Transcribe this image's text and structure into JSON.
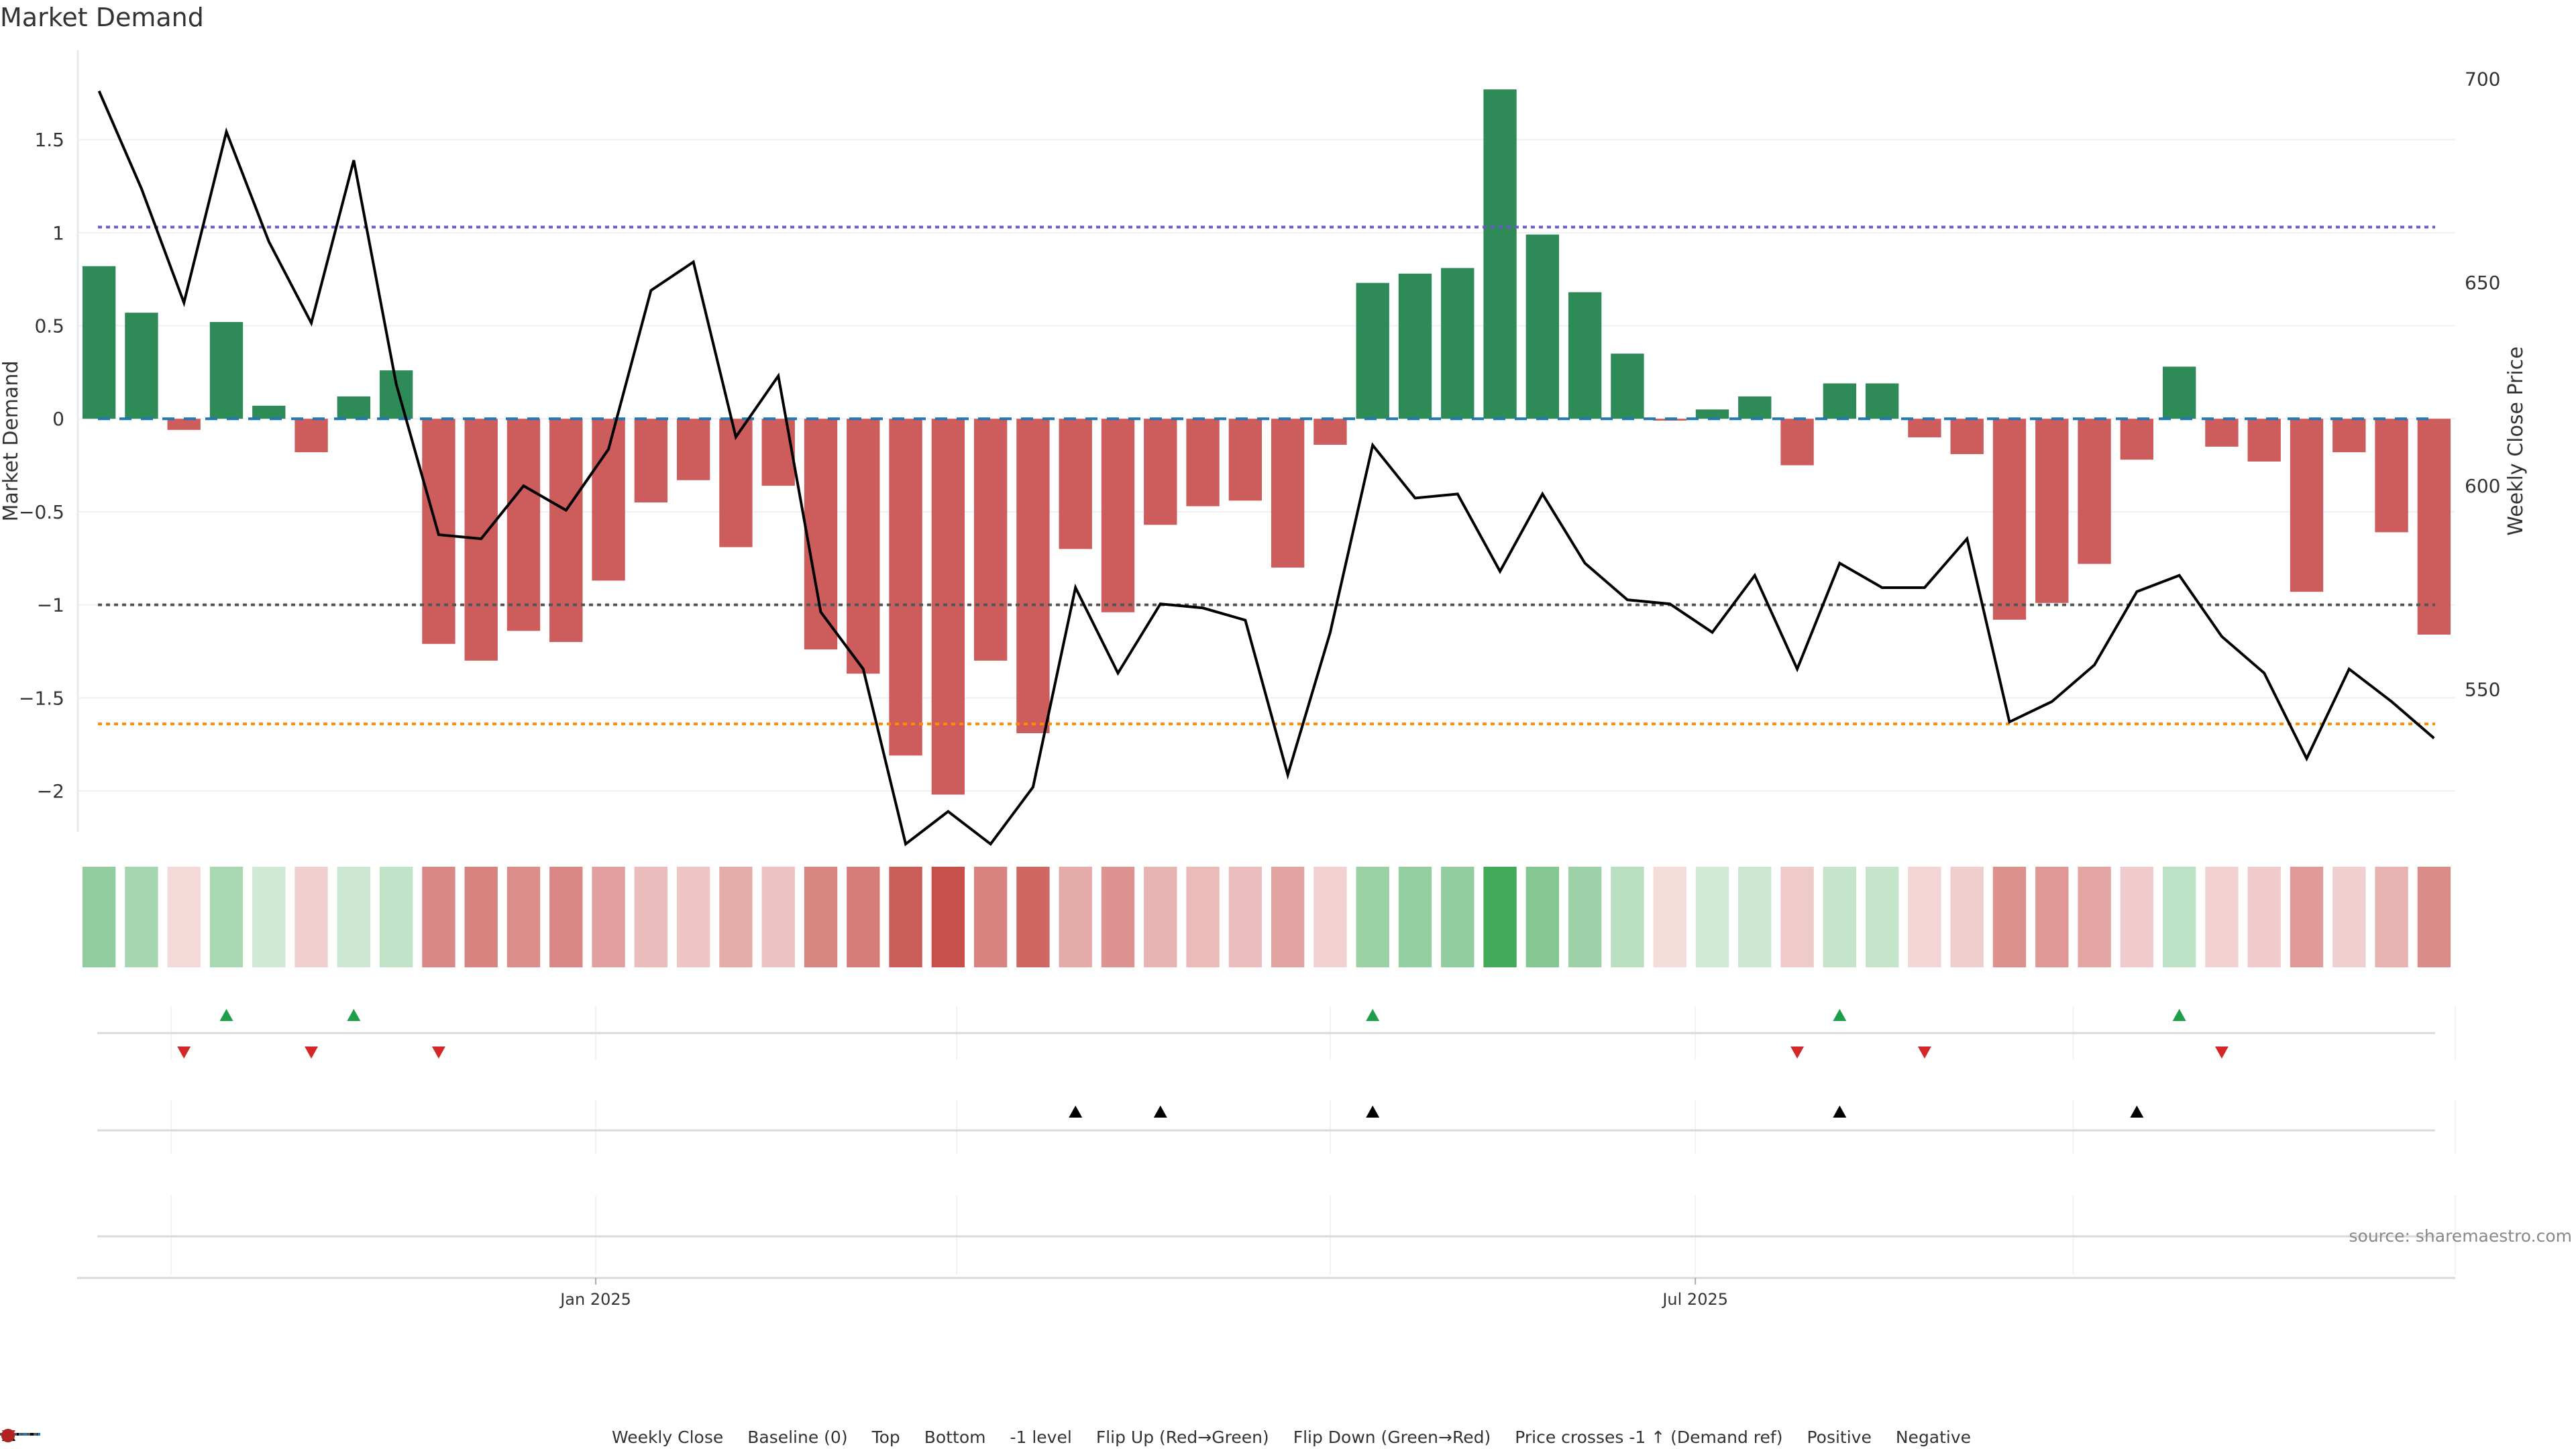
{
  "chart_data": {
    "type": "bar",
    "title": "Market Demand",
    "ylabel": "Market Demand",
    "y2label": "Weekly Close Price",
    "ylim": [
      -2.22,
      1.98
    ],
    "y2lim": [
      515,
      707
    ],
    "yticks": [
      -2,
      -1.5,
      -1,
      -0.5,
      0,
      0.5,
      1,
      1.5
    ],
    "ytick_labels": [
      "−2",
      "−1.5",
      "−1",
      "−0.5",
      "0",
      "0.5",
      "1",
      "1.5"
    ],
    "y2ticks": [
      550,
      600,
      650,
      700
    ],
    "y2tick_labels": [
      "550",
      "600",
      "650",
      "700"
    ],
    "xtick_labels": [
      {
        "label": "Jan 2025",
        "index": 11.7
      },
      {
        "label": "Jul 2025",
        "index": 37.6
      }
    ],
    "reference_lines": {
      "top": 1.03,
      "bottom": -1.64,
      "minus_one": -1,
      "baseline": 0
    },
    "demand": [
      0.82,
      0.57,
      -0.06,
      0.52,
      0.07,
      -0.18,
      0.12,
      0.26,
      -1.21,
      -1.3,
      -1.14,
      -1.2,
      -0.87,
      -0.45,
      -0.33,
      -0.69,
      -0.36,
      -1.24,
      -1.37,
      -1.81,
      -2.02,
      -1.3,
      -1.69,
      -0.7,
      -1.04,
      -0.57,
      -0.47,
      -0.44,
      -0.8,
      -0.14,
      0.73,
      0.78,
      0.81,
      1.77,
      0.99,
      0.68,
      0.35,
      -0.01,
      0.05,
      0.12,
      -0.25,
      0.19,
      0.19,
      -0.1,
      -0.19,
      -1.08,
      -0.99,
      -0.78,
      -0.22,
      0.28,
      -0.15,
      -0.23,
      -0.93,
      -0.18,
      -0.61,
      -1.16
    ],
    "weekly_close": [
      697,
      673,
      645,
      687,
      660,
      640,
      680,
      625,
      588,
      587,
      600,
      594,
      609,
      648,
      655,
      612,
      627,
      569,
      555,
      512,
      520,
      512,
      526,
      575,
      554,
      571,
      570,
      567,
      529,
      564,
      610,
      597,
      598,
      579,
      598,
      581,
      572,
      571,
      564,
      578,
      555,
      581,
      575,
      575,
      587,
      542,
      547,
      556,
      574,
      578,
      563,
      554,
      533,
      555,
      547,
      538
    ],
    "flip_up_indices": [
      3,
      6,
      30,
      41,
      49
    ],
    "flip_down_indices": [
      2,
      5,
      8,
      40,
      43,
      50
    ],
    "price_cross_indices": [
      23,
      25,
      30,
      41,
      48
    ],
    "colors": {
      "positive_bar": "#2e8b57",
      "negative_bar": "#cd5c5c",
      "line": "#000000",
      "baseline": "#1f77b4",
      "top": "#6a5acd",
      "bottom": "#ff8c00",
      "minus_one": "#555555",
      "flip_up": "#1e9e4a",
      "flip_down": "#d62728",
      "price_cross": "#000000",
      "positive_dot": "#228b22",
      "negative_dot": "#b22222"
    },
    "legend": [
      {
        "key": "weekly_close",
        "label": "Weekly Close"
      },
      {
        "key": "baseline",
        "label": "Baseline (0)"
      },
      {
        "key": "top",
        "label": "Top"
      },
      {
        "key": "bottom",
        "label": "Bottom"
      },
      {
        "key": "minus_one",
        "label": "-1 level"
      },
      {
        "key": "flip_up",
        "label": "Flip Up (Red→Green)"
      },
      {
        "key": "flip_down",
        "label": "Flip Down (Green→Red)"
      },
      {
        "key": "price_cross",
        "label": "Price crosses -1 ↑ (Demand ref)"
      },
      {
        "key": "positive",
        "label": "Positive"
      },
      {
        "key": "negative",
        "label": "Negative"
      }
    ],
    "legend_position": "bottom-center"
  },
  "source": "source: sharemaestro.com"
}
